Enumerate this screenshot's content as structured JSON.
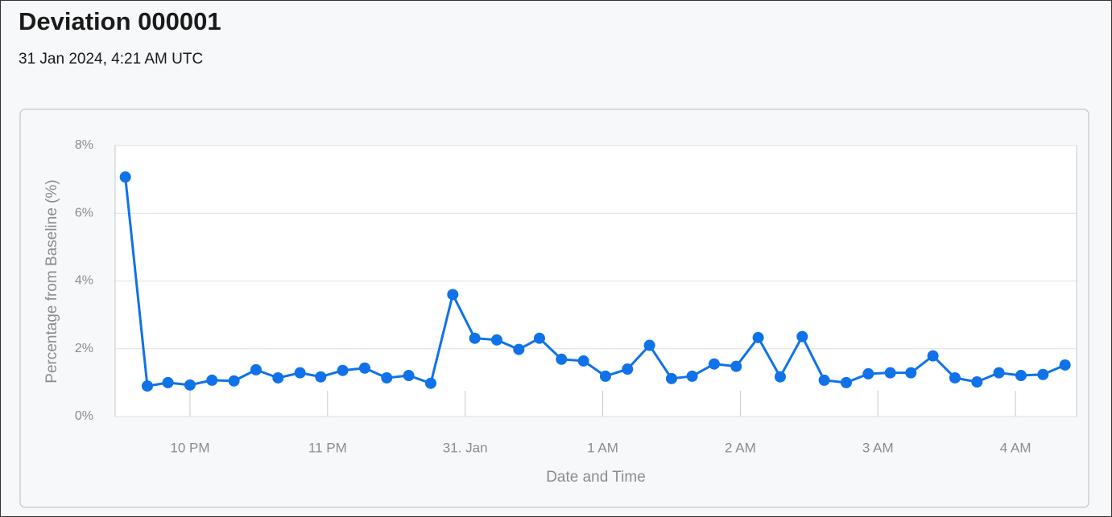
{
  "header": {
    "title": "Deviation 000001",
    "subtitle": "31 Jan 2024, 4:21 AM UTC"
  },
  "chart_data": {
    "type": "line",
    "x_label": "Date and Time",
    "y_label": "Percentage from Baseline (%)",
    "x": [
      -2.47,
      -2.31,
      -2.16,
      -2.0,
      -1.84,
      -1.68,
      -1.52,
      -1.36,
      -1.2,
      -1.05,
      -0.89,
      -0.73,
      -0.57,
      -0.41,
      -0.25,
      -0.09,
      0.07,
      0.23,
      0.39,
      0.54,
      0.7,
      0.86,
      1.02,
      1.18,
      1.34,
      1.5,
      1.65,
      1.81,
      1.97,
      2.13,
      2.29,
      2.45,
      2.61,
      2.77,
      2.93,
      3.09,
      3.24,
      3.4,
      3.56,
      3.72,
      3.88,
      4.04,
      4.2,
      4.36
    ],
    "series": [
      {
        "color": "#0f72e8",
        "values": [
          7.07,
          0.9,
          1.0,
          0.93,
          1.07,
          1.05,
          1.38,
          1.14,
          1.29,
          1.17,
          1.36,
          1.43,
          1.14,
          1.21,
          0.98,
          3.6,
          2.31,
          2.26,
          1.98,
          2.31,
          1.69,
          1.64,
          1.19,
          1.4,
          2.1,
          1.12,
          1.19,
          1.55,
          1.48,
          2.33,
          1.17,
          2.36,
          1.07,
          1.0,
          1.26,
          1.29,
          1.29,
          1.79,
          1.14,
          1.02,
          1.29,
          1.21,
          1.24,
          1.52
        ]
      }
    ],
    "xlim": [
      -2.544,
      4.444
    ],
    "xticks": [
      {
        "value": -2,
        "label": "10 PM"
      },
      {
        "value": -1,
        "label": "11 PM"
      },
      {
        "value": 0,
        "label": "31. Jan"
      },
      {
        "value": 1,
        "label": "1 AM"
      },
      {
        "value": 2,
        "label": "2 AM"
      },
      {
        "value": 3,
        "label": "3 AM"
      },
      {
        "value": 4,
        "label": "4 AM"
      }
    ],
    "ylim": [
      0,
      8
    ],
    "yticks": [
      {
        "value": 0,
        "label": "0%"
      },
      {
        "value": 2,
        "label": "2%"
      },
      {
        "value": 4,
        "label": "4%"
      },
      {
        "value": 6,
        "label": "6%"
      },
      {
        "value": 8,
        "label": "8%"
      }
    ],
    "grid": true
  }
}
